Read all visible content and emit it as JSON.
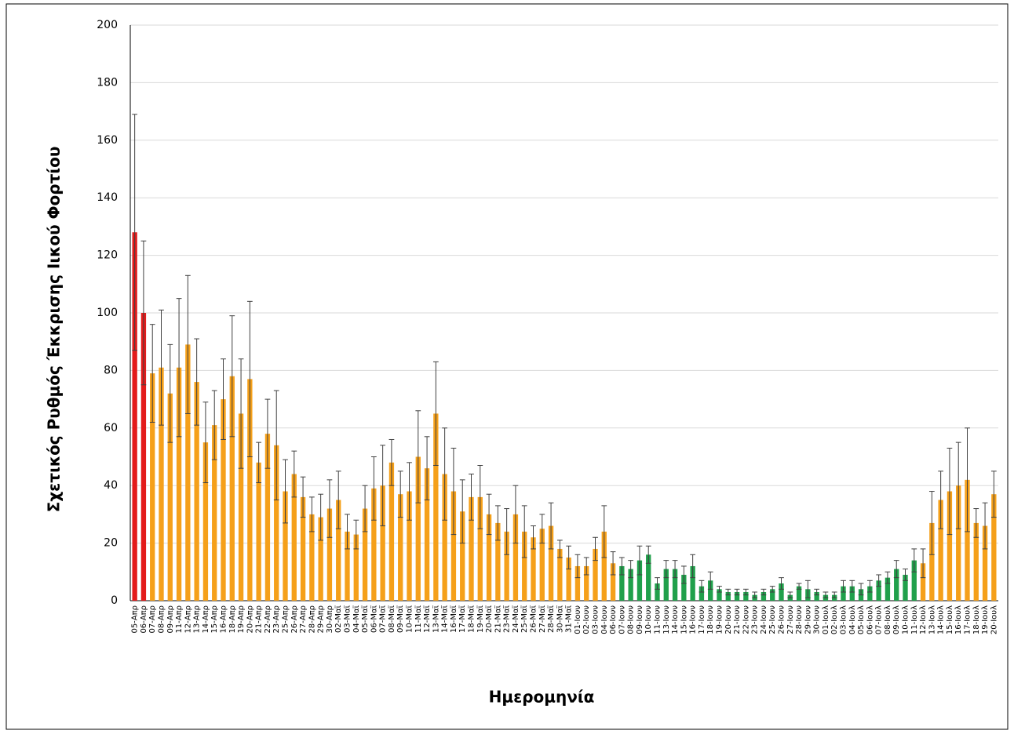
{
  "chart_data": {
    "type": "bar",
    "ylabel": "Σχετικός Ρυθμός Έκκρισης Ιικού Φορτίου",
    "xlabel": "Ημερομηνία",
    "categories": [
      "05-Απρ",
      "06-Απρ",
      "07-Απρ",
      "08-Απρ",
      "09-Απρ",
      "11-Απρ",
      "12-Απρ",
      "13-Απρ",
      "14-Απρ",
      "15-Απρ",
      "16-Απρ",
      "18-Απρ",
      "19-Απρ",
      "20-Απρ",
      "21-Απρ",
      "22-Απρ",
      "23-Απρ",
      "25-Απρ",
      "26-Απρ",
      "27-Απρ",
      "28-Απρ",
      "29-Απρ",
      "30-Απρ",
      "02-Μαϊ",
      "03-Μαϊ",
      "04-Μαϊ",
      "05-Μαϊ",
      "06-Μαϊ",
      "07-Μαϊ",
      "08-Μαϊ",
      "09-Μαϊ",
      "10-Μαϊ",
      "11-Μαϊ",
      "12-Μαϊ",
      "13-Μαϊ",
      "14-Μαϊ",
      "16-Μαϊ",
      "17-Μαϊ",
      "18-Μαϊ",
      "19-Μαϊ",
      "20-Μαϊ",
      "21-Μαϊ",
      "23-Μαϊ",
      "24-Μαϊ",
      "25-Μαϊ",
      "26-Μαϊ",
      "27-Μαϊ",
      "28-Μαϊ",
      "30-Μαϊ",
      "31-Μαϊ",
      "01-Ιουν",
      "02-Ιουν",
      "03-Ιουν",
      "04-Ιουν",
      "06-Ιουν",
      "07-Ιουν",
      "08-Ιουν",
      "09-Ιουν",
      "10-Ιουν",
      "11-Ιουν",
      "13-Ιουν",
      "14-Ιουν",
      "15-Ιουν",
      "16-Ιουν",
      "17-Ιουν",
      "18-Ιουν",
      "19-Ιουν",
      "20-Ιουν",
      "21-Ιουν",
      "22-Ιουν",
      "23-Ιουν",
      "24-Ιουν",
      "25-Ιουν",
      "26-Ιουν",
      "27-Ιουν",
      "28-Ιουν",
      "29-Ιουν",
      "30-Ιουν",
      "01-Ιουλ",
      "02-Ιουλ",
      "03-Ιουλ",
      "04-Ιουλ",
      "05-Ιουλ",
      "06-Ιουλ",
      "07-Ιουλ",
      "08-Ιουλ",
      "09-Ιουλ",
      "10-Ιουλ",
      "11-Ιουλ",
      "12-Ιουλ",
      "13-Ιουλ",
      "14-Ιουλ",
      "15-Ιουλ",
      "16-Ιουλ",
      "17-Ιουλ",
      "18-Ιουλ",
      "19-Ιουλ",
      "20-Ιουλ"
    ],
    "values": [
      128,
      100,
      79,
      81,
      72,
      81,
      89,
      76,
      55,
      61,
      70,
      78,
      65,
      77,
      48,
      58,
      54,
      38,
      44,
      36,
      30,
      29,
      32,
      35,
      24,
      23,
      32,
      39,
      40,
      48,
      37,
      38,
      50,
      46,
      65,
      44,
      38,
      31,
      36,
      36,
      30,
      27,
      24,
      30,
      24,
      22,
      25,
      26,
      18,
      15,
      12,
      12,
      18,
      24,
      13,
      12,
      11,
      14,
      16,
      6,
      11,
      11,
      9,
      12,
      5,
      7,
      4,
      3,
      3,
      3,
      2,
      3,
      4,
      6,
      2,
      5,
      4,
      3,
      2,
      2,
      5,
      5,
      4,
      5,
      7,
      8,
      11,
      9,
      14,
      13,
      27,
      35,
      38,
      40,
      42,
      27,
      26,
      37
    ],
    "errors": [
      41,
      25,
      17,
      20,
      17,
      24,
      24,
      15,
      14,
      12,
      14,
      21,
      19,
      27,
      7,
      12,
      19,
      11,
      8,
      7,
      6,
      8,
      10,
      10,
      6,
      5,
      8,
      11,
      14,
      8,
      8,
      10,
      16,
      11,
      18,
      16,
      15,
      11,
      8,
      11,
      7,
      6,
      8,
      10,
      9,
      4,
      5,
      8,
      3,
      4,
      4,
      3,
      4,
      9,
      4,
      3,
      3,
      5,
      3,
      2,
      3,
      3,
      3,
      4,
      2,
      3,
      1,
      1,
      1,
      1,
      1,
      1,
      1,
      2,
      1,
      1,
      3,
      1,
      1,
      1,
      2,
      2,
      2,
      2,
      2,
      2,
      3,
      2,
      4,
      5,
      11,
      10,
      15,
      15,
      18,
      5,
      8,
      8
    ],
    "colors": [
      "#e31b1b",
      "#e31b1b",
      "#f5a01a",
      "#f5a01a",
      "#f5a01a",
      "#f5a01a",
      "#f5a01a",
      "#f5a01a",
      "#f5a01a",
      "#f5a01a",
      "#f5a01a",
      "#f5a01a",
      "#f5a01a",
      "#f5a01a",
      "#f5a01a",
      "#f5a01a",
      "#f5a01a",
      "#f5a01a",
      "#f5a01a",
      "#f5a01a",
      "#f5a01a",
      "#f5a01a",
      "#f5a01a",
      "#f5a01a",
      "#f5a01a",
      "#f5a01a",
      "#f5a01a",
      "#f5a01a",
      "#f5a01a",
      "#f5a01a",
      "#f5a01a",
      "#f5a01a",
      "#f5a01a",
      "#f5a01a",
      "#f5a01a",
      "#f5a01a",
      "#f5a01a",
      "#f5a01a",
      "#f5a01a",
      "#f5a01a",
      "#f5a01a",
      "#f5a01a",
      "#f5a01a",
      "#f5a01a",
      "#f5a01a",
      "#f5a01a",
      "#f5a01a",
      "#f5a01a",
      "#f5a01a",
      "#f5a01a",
      "#f5a01a",
      "#f5a01a",
      "#f5a01a",
      "#f5a01a",
      "#f5a01a",
      "#20a04b",
      "#20a04b",
      "#20a04b",
      "#20a04b",
      "#20a04b",
      "#20a04b",
      "#20a04b",
      "#20a04b",
      "#20a04b",
      "#20a04b",
      "#20a04b",
      "#20a04b",
      "#20a04b",
      "#20a04b",
      "#20a04b",
      "#20a04b",
      "#20a04b",
      "#20a04b",
      "#20a04b",
      "#20a04b",
      "#20a04b",
      "#20a04b",
      "#20a04b",
      "#20a04b",
      "#20a04b",
      "#20a04b",
      "#20a04b",
      "#20a04b",
      "#20a04b",
      "#20a04b",
      "#20a04b",
      "#20a04b",
      "#20a04b",
      "#20a04b",
      "#f5a01a",
      "#f5a01a",
      "#f5a01a",
      "#f5a01a",
      "#f5a01a",
      "#f5a01a",
      "#f5a01a",
      "#f5a01a",
      "#f5a01a"
    ],
    "ylim": [
      0,
      200
    ],
    "yticks": [
      0,
      20,
      40,
      60,
      80,
      100,
      120,
      140,
      160,
      180,
      200
    ],
    "grid": true
  }
}
